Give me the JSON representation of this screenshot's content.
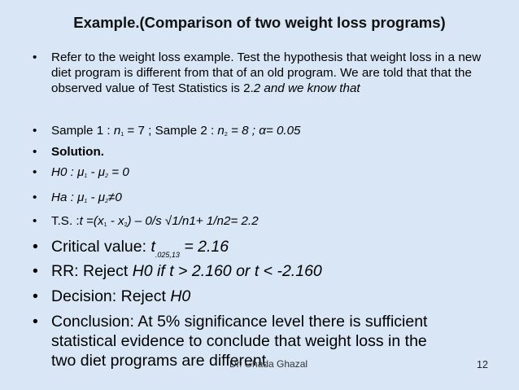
{
  "slide": {
    "title": "Example.(Comparison of two weight loss programs)",
    "bullet_symbol": "•",
    "p1": {
      "text": "Refer to the weight loss example. Test the hypothesis that weight loss in a new diet program is different from that of an old program. We are told that that the observed value of Test Statistics is 2.",
      "tail": "2 and we know that"
    },
    "p2": {
      "a": "Sample 1 : ",
      "n": "n",
      "sub1": "1",
      "b": " = 7   ; Sample 2 : ",
      "sub2": "2",
      "c": " = 8 ;   α= 0.05"
    },
    "p3": {
      "text": "Solution."
    },
    "p4": {
      "a": "H0 : μ",
      "sub1": "1",
      "b": " - μ",
      "sub2": "2",
      "c": " = 0"
    },
    "p5": {
      "a": "Ha : μ",
      "sub1": "1",
      "b": " - μ",
      "sub2": "2",
      "c": "≠0"
    },
    "p6": {
      "a": "T.S. :",
      "b": "t =(x",
      "sub1": "1",
      "c": " - x",
      "sub2": "2",
      "d": ") – 0/s √1/n1+ 1/n2= 2.2"
    },
    "p7": {
      "a": "Critical value: ",
      "t": "t",
      "sub": ".025,13",
      "b": " = 2.16"
    },
    "p8": {
      "a": "RR: Reject ",
      "b": "H0 if t > 2.160 or t < -2.160"
    },
    "p9": {
      "a": "Decision: Reject ",
      "b": "H0"
    },
    "p10": {
      "line1": "Conclusion: At 5% significance level there is sufficient",
      "line2": "statistical evidence to conclude that weight loss in the",
      "line3": "two diet programs are different"
    },
    "footer": "Dr. Ghada Ghazal",
    "page_number": "12"
  }
}
